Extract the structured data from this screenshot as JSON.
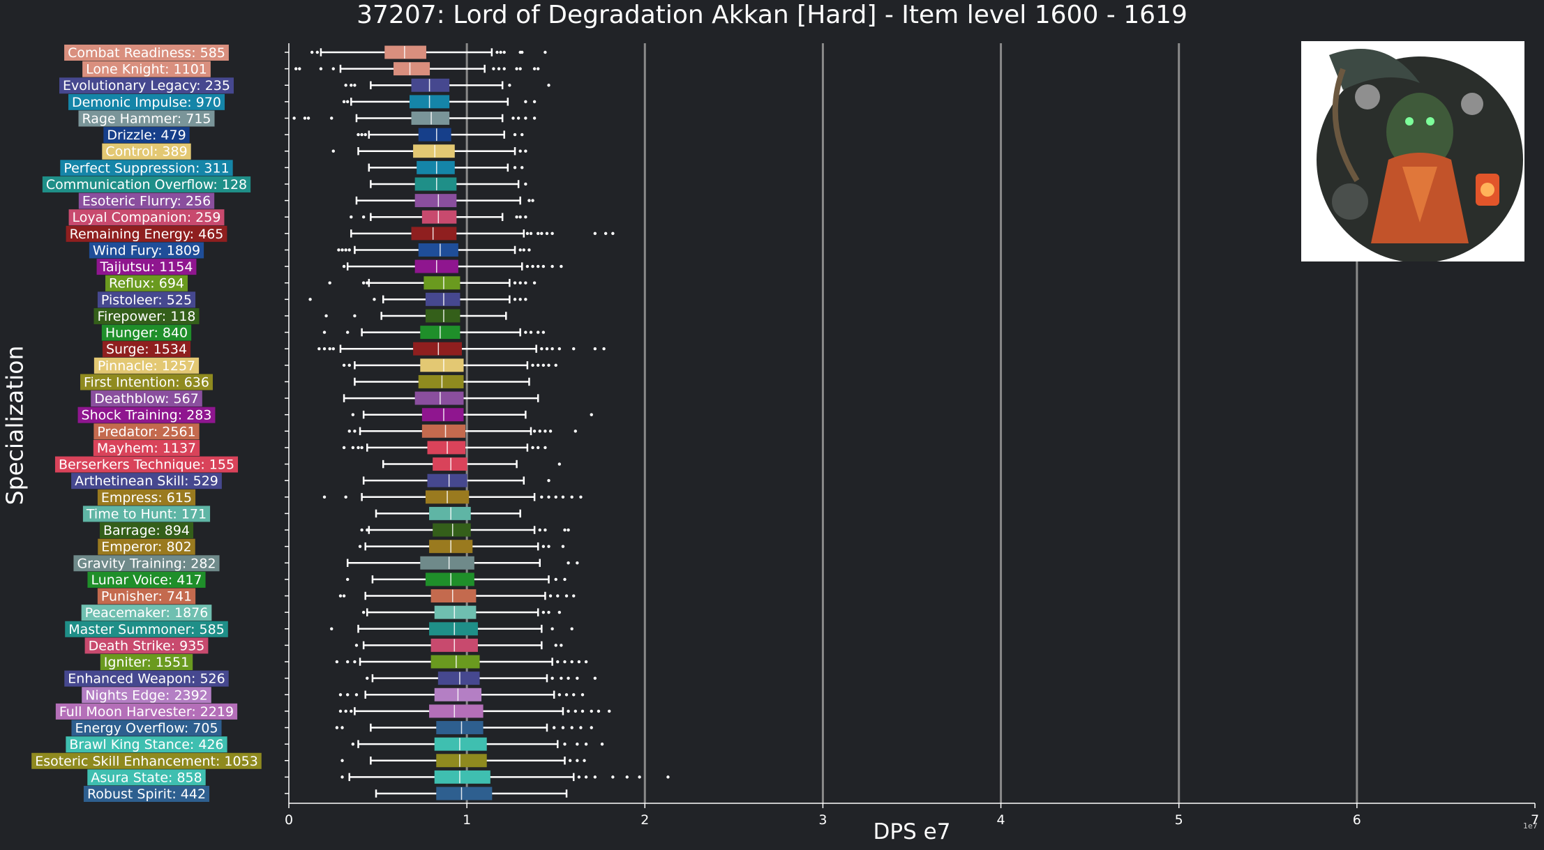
{
  "title": "37207: Lord of Degradation Akkan [Hard] - Item level 1600 - 1619",
  "xlabel": "DPS e7",
  "ylabel": "Specialization",
  "x_scale_note": "1e7",
  "boss_image": {
    "icon": "akkan-boss-portrait"
  },
  "colors": {
    "background": "#212327",
    "axis": "#ffffff",
    "grid": "#8a8a8a"
  },
  "chart_data": {
    "type": "box",
    "orientation": "horizontal",
    "title": "37207: Lord of Degradation Akkan [Hard] - Item level 1600 - 1619",
    "xlabel": "DPS e7",
    "ylabel": "Specialization",
    "xlim": [
      0,
      7
    ],
    "x_ticks": [
      "0",
      "1",
      "2",
      "3",
      "4",
      "5",
      "6",
      "7"
    ],
    "grid": "vertical",
    "series": [
      {
        "label": "Combat Readiness: 585",
        "color": "#d98f7e",
        "whisker": [
          0.18,
          1.14
        ],
        "box": [
          0.54,
          0.77
        ],
        "median": 0.65,
        "outliers": [
          0.13,
          0.16,
          1.17,
          1.19,
          1.21,
          1.3,
          1.31,
          1.44
        ]
      },
      {
        "label": "Lone Knight: 1101",
        "color": "#d98f7e",
        "whisker": [
          0.29,
          1.1
        ],
        "box": [
          0.59,
          0.79
        ],
        "median": 0.68,
        "outliers": [
          0.04,
          0.06,
          0.18,
          0.25,
          1.15,
          1.18,
          1.21,
          1.28,
          1.3,
          1.38,
          1.4
        ]
      },
      {
        "label": "Evolutionary Legacy: 235",
        "color": "#46488f",
        "whisker": [
          0.46,
          1.2
        ],
        "box": [
          0.69,
          0.9
        ],
        "median": 0.79,
        "outliers": [
          0.32,
          0.35,
          0.37,
          1.24,
          1.46
        ]
      },
      {
        "label": "Demonic Impulse: 970",
        "color": "#1585a8",
        "whisker": [
          0.35,
          1.23
        ],
        "box": [
          0.68,
          0.9
        ],
        "median": 0.79,
        "outliers": [
          0.31,
          0.33,
          1.33,
          1.38
        ]
      },
      {
        "label": "Rage Hammer: 715",
        "color": "#7a9599",
        "whisker": [
          0.38,
          1.2
        ],
        "box": [
          0.69,
          0.9
        ],
        "median": 0.8,
        "outliers": [
          0.03,
          0.09,
          0.11,
          0.24,
          1.26,
          1.29,
          1.33,
          1.38
        ]
      },
      {
        "label": "Drizzle: 479",
        "color": "#163f8a",
        "whisker": [
          0.45,
          1.21
        ],
        "box": [
          0.73,
          0.91
        ],
        "median": 0.83,
        "outliers": [
          0.39,
          0.41,
          0.43,
          1.27,
          1.31
        ]
      },
      {
        "label": "Control: 389",
        "color": "#e3c873",
        "whisker": [
          0.39,
          1.27
        ],
        "box": [
          0.7,
          0.93
        ],
        "median": 0.82,
        "outliers": [
          0.25,
          1.3,
          1.33
        ]
      },
      {
        "label": "Perfect Suppression: 311",
        "color": "#1585a8",
        "whisker": [
          0.45,
          1.23
        ],
        "box": [
          0.72,
          0.93
        ],
        "median": 0.83,
        "outliers": [
          1.27,
          1.31
        ]
      },
      {
        "label": "Communication Overflow: 128",
        "color": "#1f8f88",
        "whisker": [
          0.46,
          1.29
        ],
        "box": [
          0.71,
          0.94
        ],
        "median": 0.83,
        "outliers": [
          1.33
        ]
      },
      {
        "label": "Esoteric Flurry: 256",
        "color": "#8a4f9e",
        "whisker": [
          0.38,
          1.3
        ],
        "box": [
          0.71,
          0.94
        ],
        "median": 0.84,
        "outliers": [
          1.35,
          1.37
        ]
      },
      {
        "label": "Loyal Companion: 259",
        "color": "#c84a6e",
        "whisker": [
          0.46,
          1.2
        ],
        "box": [
          0.75,
          0.94
        ],
        "median": 0.84,
        "outliers": [
          0.35,
          0.42,
          1.28,
          1.3,
          1.33
        ]
      },
      {
        "label": "Remaining Energy: 465",
        "color": "#8f1f1f",
        "whisker": [
          0.35,
          1.32
        ],
        "box": [
          0.69,
          0.94
        ],
        "median": 0.81,
        "outliers": [
          1.34,
          1.36,
          1.4,
          1.42,
          1.45,
          1.48,
          1.72,
          1.78,
          1.82
        ]
      },
      {
        "label": "Wind Fury: 1809",
        "color": "#1f4e99",
        "whisker": [
          0.37,
          1.27
        ],
        "box": [
          0.73,
          0.95
        ],
        "median": 0.85,
        "outliers": [
          0.28,
          0.3,
          0.32,
          0.34,
          1.3,
          1.32,
          1.35
        ]
      },
      {
        "label": "Taijutsu: 1154",
        "color": "#8f168f",
        "whisker": [
          0.33,
          1.31
        ],
        "box": [
          0.71,
          0.95
        ],
        "median": 0.83,
        "outliers": [
          0.31,
          1.34,
          1.37,
          1.4,
          1.43,
          1.48,
          1.53
        ]
      },
      {
        "label": "Reflux: 694",
        "color": "#6a9a1f",
        "whisker": [
          0.45,
          1.24
        ],
        "box": [
          0.76,
          0.96
        ],
        "median": 0.87,
        "outliers": [
          0.23,
          0.42,
          0.44,
          1.27,
          1.3,
          1.33,
          1.38
        ]
      },
      {
        "label": "Pistoleer: 525",
        "color": "#46488f",
        "whisker": [
          0.53,
          1.24
        ],
        "box": [
          0.77,
          0.96
        ],
        "median": 0.87,
        "outliers": [
          0.12,
          0.48,
          1.27,
          1.3,
          1.33
        ]
      },
      {
        "label": "Firepower: 118",
        "color": "#345f1a",
        "whisker": [
          0.52,
          1.22
        ],
        "box": [
          0.77,
          0.96
        ],
        "median": 0.87,
        "outliers": [
          0.21,
          0.37
        ]
      },
      {
        "label": "Hunger: 840",
        "color": "#1f8f2a",
        "whisker": [
          0.41,
          1.3
        ],
        "box": [
          0.74,
          0.96
        ],
        "median": 0.85,
        "outliers": [
          0.2,
          0.33,
          1.33,
          1.36,
          1.4,
          1.43
        ]
      },
      {
        "label": "Surge: 1534",
        "color": "#8f1f1f",
        "whisker": [
          0.29,
          1.39
        ],
        "box": [
          0.7,
          0.97
        ],
        "median": 0.84,
        "outliers": [
          0.17,
          0.2,
          0.23,
          0.25,
          1.42,
          1.45,
          1.48,
          1.52,
          1.6,
          1.72,
          1.77
        ]
      },
      {
        "label": "Pinnacle: 1257",
        "color": "#e3c873",
        "whisker": [
          0.37,
          1.34
        ],
        "box": [
          0.74,
          0.98
        ],
        "median": 0.87,
        "outliers": [
          0.31,
          0.34,
          1.37,
          1.4,
          1.43,
          1.46,
          1.5
        ]
      },
      {
        "label": "First Intention: 636",
        "color": "#8f8a1f",
        "whisker": [
          0.37,
          1.35
        ],
        "box": [
          0.73,
          0.98
        ],
        "median": 0.86,
        "outliers": []
      },
      {
        "label": "Deathblow: 567",
        "color": "#8a4f9e",
        "whisker": [
          0.31,
          1.4
        ],
        "box": [
          0.71,
          0.98
        ],
        "median": 0.85,
        "outliers": []
      },
      {
        "label": "Shock Training: 283",
        "color": "#8f168f",
        "whisker": [
          0.42,
          1.33
        ],
        "box": [
          0.75,
          0.98
        ],
        "median": 0.87,
        "outliers": [
          0.36,
          1.7
        ]
      },
      {
        "label": "Predator: 2561",
        "color": "#c46a4e",
        "whisker": [
          0.4,
          1.36
        ],
        "box": [
          0.75,
          0.99
        ],
        "median": 0.88,
        "outliers": [
          0.34,
          0.37,
          1.38,
          1.41,
          1.44,
          1.47,
          1.61
        ]
      },
      {
        "label": "Mayhem: 1137",
        "color": "#d9435a",
        "whisker": [
          0.44,
          1.34
        ],
        "box": [
          0.78,
          0.99
        ],
        "median": 0.89,
        "outliers": [
          0.31,
          0.36,
          0.39,
          0.41,
          1.37,
          1.4,
          1.44
        ]
      },
      {
        "label": "Berserkers Technique: 155",
        "color": "#d9435a",
        "whisker": [
          0.53,
          1.28
        ],
        "box": [
          0.81,
          1.0
        ],
        "median": 0.91,
        "outliers": [
          1.52
        ]
      },
      {
        "label": "Arthetinean Skill: 529",
        "color": "#46488f",
        "whisker": [
          0.42,
          1.32
        ],
        "box": [
          0.78,
          1.0
        ],
        "median": 0.9,
        "outliers": [
          1.46
        ]
      },
      {
        "label": "Empress: 615",
        "color": "#9a7a1f",
        "whisker": [
          0.41,
          1.38
        ],
        "box": [
          0.77,
          1.01
        ],
        "median": 0.89,
        "outliers": [
          0.2,
          0.32,
          1.42,
          1.46,
          1.5,
          1.54,
          1.59,
          1.64
        ]
      },
      {
        "label": "Time to Hunt: 171",
        "color": "#5fb5a5",
        "whisker": [
          0.49,
          1.3
        ],
        "box": [
          0.79,
          1.02
        ],
        "median": 0.91,
        "outliers": []
      },
      {
        "label": "Barrage: 894",
        "color": "#345f1a",
        "whisker": [
          0.45,
          1.38
        ],
        "box": [
          0.81,
          1.02
        ],
        "median": 0.92,
        "outliers": [
          0.41,
          0.44,
          1.41,
          1.44,
          1.55,
          1.57
        ]
      },
      {
        "label": "Emperor: 802",
        "color": "#9a7a1f",
        "whisker": [
          0.43,
          1.4
        ],
        "box": [
          0.79,
          1.03
        ],
        "median": 0.91,
        "outliers": [
          0.4,
          1.43,
          1.46,
          1.54
        ]
      },
      {
        "label": "Gravity Training: 282",
        "color": "#6f8a8a",
        "whisker": [
          0.33,
          1.41
        ],
        "box": [
          0.74,
          1.04
        ],
        "median": 0.9,
        "outliers": [
          1.57,
          1.62
        ]
      },
      {
        "label": "Lunar Voice: 417",
        "color": "#1f8f2a",
        "whisker": [
          0.47,
          1.46
        ],
        "box": [
          0.77,
          1.04
        ],
        "median": 0.91,
        "outliers": [
          0.33,
          1.5,
          1.55
        ]
      },
      {
        "label": "Punisher: 741",
        "color": "#c46a4e",
        "whisker": [
          0.43,
          1.44
        ],
        "box": [
          0.8,
          1.05
        ],
        "median": 0.92,
        "outliers": [
          0.29,
          0.31,
          1.47,
          1.51,
          1.56,
          1.6
        ]
      },
      {
        "label": "Peacemaker: 1876",
        "color": "#6fbfb0",
        "whisker": [
          0.44,
          1.4
        ],
        "box": [
          0.82,
          1.05
        ],
        "median": 0.93,
        "outliers": [
          0.42,
          1.43,
          1.46,
          1.52
        ]
      },
      {
        "label": "Master Summoner: 585",
        "color": "#1f8f88",
        "whisker": [
          0.39,
          1.42
        ],
        "box": [
          0.79,
          1.06
        ],
        "median": 0.93,
        "outliers": [
          0.24,
          1.48,
          1.59
        ]
      },
      {
        "label": "Death Strike: 935",
        "color": "#c84a6e",
        "whisker": [
          0.42,
          1.42
        ],
        "box": [
          0.8,
          1.06
        ],
        "median": 0.93,
        "outliers": [
          0.38,
          1.5,
          1.53
        ]
      },
      {
        "label": "Igniter: 1551",
        "color": "#6a9a1f",
        "whisker": [
          0.4,
          1.48
        ],
        "box": [
          0.8,
          1.07
        ],
        "median": 0.94,
        "outliers": [
          0.27,
          0.33,
          0.37,
          1.51,
          1.55,
          1.59,
          1.63,
          1.67
        ]
      },
      {
        "label": "Enhanced Weapon: 526",
        "color": "#46488f",
        "whisker": [
          0.47,
          1.45
        ],
        "box": [
          0.84,
          1.07
        ],
        "median": 0.96,
        "outliers": [
          0.44,
          1.48,
          1.53,
          1.57,
          1.62,
          1.72
        ]
      },
      {
        "label": "Nights Edge: 2392",
        "color": "#b47fc4",
        "whisker": [
          0.43,
          1.49
        ],
        "box": [
          0.82,
          1.08
        ],
        "median": 0.95,
        "outliers": [
          0.29,
          0.33,
          0.38,
          1.52,
          1.56,
          1.6,
          1.65
        ]
      },
      {
        "label": "Full Moon Harvester: 2219",
        "color": "#b46fb8",
        "whisker": [
          0.37,
          1.54
        ],
        "box": [
          0.79,
          1.09
        ],
        "median": 0.93,
        "outliers": [
          0.29,
          0.32,
          0.35,
          1.57,
          1.61,
          1.65,
          1.7,
          1.74,
          1.8
        ]
      },
      {
        "label": "Energy Overflow: 705",
        "color": "#2e5f8f",
        "whisker": [
          0.46,
          1.45
        ],
        "box": [
          0.83,
          1.09
        ],
        "median": 0.97,
        "outliers": [
          0.27,
          0.3,
          1.49,
          1.54,
          1.59,
          1.64,
          1.7
        ]
      },
      {
        "label": "Brawl King Stance: 426",
        "color": "#3fbfb0",
        "whisker": [
          0.39,
          1.51
        ],
        "box": [
          0.82,
          1.11
        ],
        "median": 0.96,
        "outliers": [
          0.36,
          1.55,
          1.62,
          1.67,
          1.76
        ]
      },
      {
        "label": "Esoteric Skill Enhancement: 1053",
        "color": "#8f8a1f",
        "whisker": [
          0.46,
          1.55
        ],
        "box": [
          0.83,
          1.11
        ],
        "median": 0.96,
        "outliers": [
          0.3,
          1.58,
          1.62,
          1.66
        ]
      },
      {
        "label": "Asura State: 858",
        "color": "#3fbfb0",
        "whisker": [
          0.34,
          1.6
        ],
        "box": [
          0.82,
          1.13
        ],
        "median": 0.96,
        "outliers": [
          0.3,
          1.63,
          1.67,
          1.72,
          1.82,
          1.9,
          1.97,
          2.13
        ]
      },
      {
        "label": "Robust Spirit: 442",
        "color": "#2e5f8f",
        "whisker": [
          0.49,
          1.56
        ],
        "box": [
          0.83,
          1.14
        ],
        "median": 0.97,
        "outliers": []
      }
    ]
  }
}
